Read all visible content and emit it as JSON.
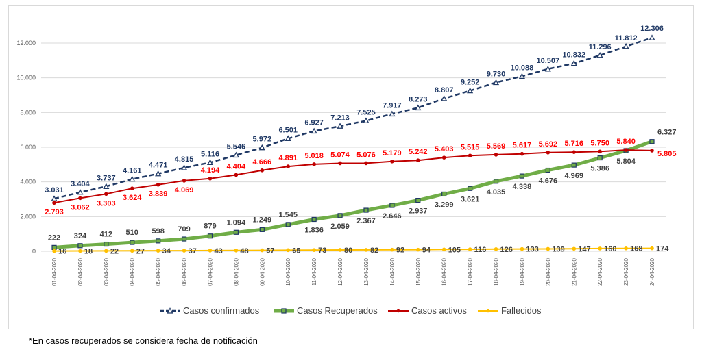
{
  "footnote": "*En casos recuperados se considera fecha de notificación",
  "chart_data": {
    "type": "line",
    "x": [
      "01-04-2020",
      "02-04-2020",
      "03-04-2020",
      "04-04-2020",
      "05-04-2020",
      "06-04-2020",
      "07-04-2020",
      "08-04-2020",
      "09-04-2020",
      "10-04-2020",
      "11-04-2020",
      "12-04-2020",
      "13-04-2020",
      "14-04-2020",
      "15-04-2020",
      "16-04-2020",
      "17-04-2020",
      "18-04-2020",
      "19-04-2020",
      "20-04-2020",
      "21-04-2020",
      "22-04-2020",
      "23-04-2020",
      "24-04-2020"
    ],
    "ylim": [
      0,
      12000
    ],
    "yticks": [
      0,
      2000,
      4000,
      6000,
      8000,
      10000,
      12000
    ],
    "ytick_labels": [
      "0",
      "2.000",
      "4.000",
      "6.000",
      "8.000",
      "10.000",
      "12.000"
    ],
    "grid": true,
    "legend_position": "bottom",
    "series": [
      {
        "name": "Casos confirmados",
        "color": "#1f3864",
        "style": "dashed",
        "marker": "triangle",
        "values": [
          3031,
          3404,
          3737,
          4161,
          4471,
          4815,
          5116,
          5546,
          5972,
          6501,
          6927,
          7213,
          7525,
          7917,
          8273,
          8807,
          9252,
          9730,
          10088,
          10507,
          10832,
          11296,
          11812,
          12306
        ],
        "labels": [
          "3.031",
          "3.404",
          "3.737",
          "4.161",
          "4.471",
          "4.815",
          "5.116",
          "5.546",
          "5.972",
          "6.501",
          "6.927",
          "7.213",
          "7.525",
          "7.917",
          "8.273",
          "8.807",
          "9.252",
          "9.730",
          "10.088",
          "10.507",
          "10.832",
          "11.296",
          "11.812",
          "12.306"
        ]
      },
      {
        "name": "Casos Recuperados",
        "color": "#70ad47",
        "style": "solid-thick",
        "marker": "square",
        "values": [
          222,
          324,
          412,
          510,
          598,
          709,
          879,
          1094,
          1249,
          1545,
          1836,
          2059,
          2367,
          2646,
          2937,
          3299,
          3621,
          4035,
          4338,
          4676,
          4969,
          5386,
          5804,
          6327
        ],
        "labels": [
          "222",
          "324",
          "412",
          "510",
          "598",
          "709",
          "879",
          "1.094",
          "1.249",
          "1.545",
          "1.836",
          "2.059",
          "2.367",
          "2.646",
          "2.937",
          "3.299",
          "3.621",
          "4.035",
          "4.338",
          "4.676",
          "4.969",
          "5.386",
          "5.804",
          "6.327"
        ]
      },
      {
        "name": "Casos activos",
        "color": "#c00000",
        "label_color": "#ff0000",
        "style": "solid",
        "marker": "circle",
        "values": [
          2793,
          3062,
          3303,
          3624,
          3839,
          4069,
          4194,
          4404,
          4666,
          4891,
          5018,
          5074,
          5076,
          5179,
          5242,
          5403,
          5515,
          5569,
          5617,
          5692,
          5716,
          5750,
          5840,
          5805
        ],
        "labels": [
          "2.793",
          "3.062",
          "3.303",
          "3.624",
          "3.839",
          "4.069",
          "4.194",
          "4.404",
          "4.666",
          "4.891",
          "5.018",
          "5.074",
          "5.076",
          "5.179",
          "5.242",
          "5.403",
          "5.515",
          "5.569",
          "5.617",
          "5.692",
          "5.716",
          "5.750",
          "5.840",
          "5.805"
        ]
      },
      {
        "name": "Fallecidos",
        "color": "#ffc000",
        "style": "solid",
        "marker": "circle",
        "values": [
          16,
          18,
          22,
          27,
          34,
          37,
          43,
          48,
          57,
          65,
          73,
          80,
          82,
          92,
          94,
          105,
          116,
          126,
          133,
          139,
          147,
          160,
          168,
          174
        ],
        "labels": [
          "16",
          "18",
          "22",
          "27",
          "34",
          "37",
          "43",
          "48",
          "57",
          "65",
          "73",
          "80",
          "82",
          "92",
          "94",
          "105",
          "116",
          "126",
          "133",
          "139",
          "147",
          "160",
          "168",
          "174"
        ]
      }
    ]
  }
}
